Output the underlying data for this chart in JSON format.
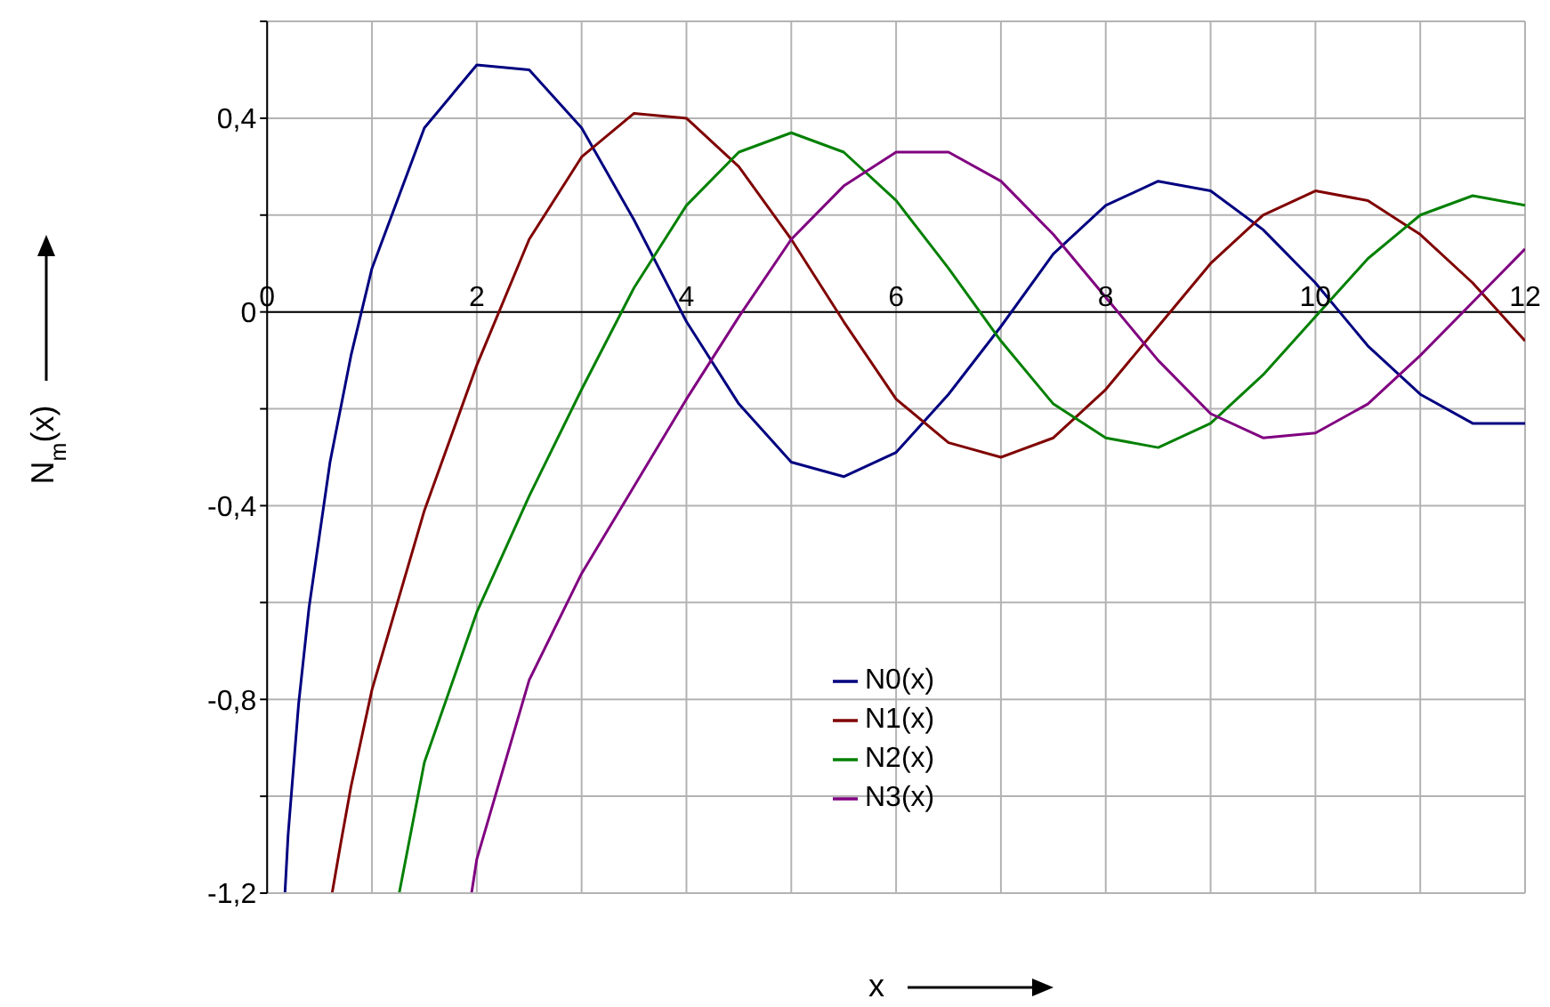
{
  "chart_data": {
    "type": "line",
    "xlabel": "x",
    "ylabel": "N$_{m}$(x)",
    "xlim": [
      0,
      12
    ],
    "ylim": [
      -1.2,
      0.6
    ],
    "xticks": [
      0,
      {
        "value": 1,
        "label": null
      },
      2,
      {
        "value": 3,
        "label": null
      },
      4,
      {
        "value": 5,
        "label": null
      },
      6,
      {
        "value": 7,
        "label": null
      },
      8,
      {
        "value": 9,
        "label": null
      },
      10,
      {
        "value": 11,
        "label": null
      },
      12
    ],
    "yticks": [
      {
        "value": -1.2,
        "label": "-1,2"
      },
      {
        "value": -1,
        "label": null
      },
      {
        "value": -0.8,
        "label": "-0,8"
      },
      {
        "value": -0.6,
        "label": null
      },
      {
        "value": -0.4,
        "label": "-0,4"
      },
      {
        "value": -0.2,
        "label": null
      },
      0,
      {
        "value": 0.2,
        "label": null
      },
      {
        "value": 0.4,
        "label": "0,4"
      },
      {
        "value": 0.6,
        "label": null
      }
    ],
    "grid": true,
    "legend": "bottom",
    "marker": "none",
    "line_style": "solid",
    "series": [
      {
        "name": "N0(x)",
        "color": "#000080",
        "x": [
          0.17,
          0.2,
          0.3,
          0.4,
          0.6,
          0.8,
          1,
          1.5,
          2,
          2.5,
          3,
          3.5,
          4,
          4.5,
          5,
          5.5,
          6,
          6.5,
          7,
          7.5,
          8,
          8.5,
          9,
          9.5,
          10,
          10.5,
          11,
          11.5,
          12
        ],
        "values": [
          -1.2,
          -1.08,
          -0.81,
          -0.61,
          -0.31,
          -0.09,
          0.09,
          0.38,
          0.51,
          0.5,
          0.38,
          0.19,
          -0.02,
          -0.19,
          -0.31,
          -0.34,
          -0.29,
          -0.17,
          -0.03,
          0.12,
          0.22,
          0.27,
          0.25,
          0.17,
          0.06,
          -0.07,
          -0.17,
          -0.23,
          -0.23
        ]
      },
      {
        "name": "N1(x)",
        "color": "#800000",
        "x": [
          0.62,
          0.7,
          0.8,
          1,
          1.5,
          2,
          2.5,
          3,
          3.5,
          4,
          4.5,
          5,
          5.5,
          6,
          6.5,
          7,
          7.5,
          8,
          8.5,
          9,
          9.5,
          10,
          10.5,
          11,
          11.5,
          12
        ],
        "values": [
          -1.2,
          -1.1,
          -0.98,
          -0.78,
          -0.41,
          -0.11,
          0.15,
          0.32,
          0.41,
          0.4,
          0.3,
          0.15,
          -0.02,
          -0.18,
          -0.27,
          -0.3,
          -0.26,
          -0.16,
          -0.03,
          0.1,
          0.2,
          0.25,
          0.23,
          0.16,
          0.06,
          -0.06
        ]
      },
      {
        "name": "N2(x)",
        "color": "#008000",
        "x": [
          1.26,
          1.5,
          2,
          2.5,
          3,
          3.5,
          4,
          4.5,
          5,
          5.5,
          6,
          6.5,
          7,
          7.5,
          8,
          8.5,
          9,
          9.5,
          10,
          10.5,
          11,
          11.5,
          12
        ],
        "values": [
          -1.2,
          -0.93,
          -0.62,
          -0.38,
          -0.16,
          0.05,
          0.22,
          0.33,
          0.37,
          0.33,
          0.23,
          0.09,
          -0.06,
          -0.19,
          -0.26,
          -0.28,
          -0.23,
          -0.13,
          -0.01,
          0.11,
          0.2,
          0.24,
          0.22
        ]
      },
      {
        "name": "N3(x)",
        "color": "#800080",
        "x": [
          1.95,
          2,
          2.5,
          3,
          3.5,
          4,
          4.5,
          5,
          5.5,
          6,
          6.5,
          7,
          7.5,
          8,
          8.5,
          9,
          9.5,
          10,
          10.5,
          11,
          11.5,
          12
        ],
        "values": [
          -1.2,
          -1.13,
          -0.76,
          -0.54,
          -0.36,
          -0.18,
          -0.01,
          0.15,
          0.26,
          0.33,
          0.33,
          0.27,
          0.16,
          0.03,
          -0.1,
          -0.21,
          -0.26,
          -0.25,
          -0.19,
          -0.09,
          0.02,
          0.13
        ]
      }
    ]
  }
}
